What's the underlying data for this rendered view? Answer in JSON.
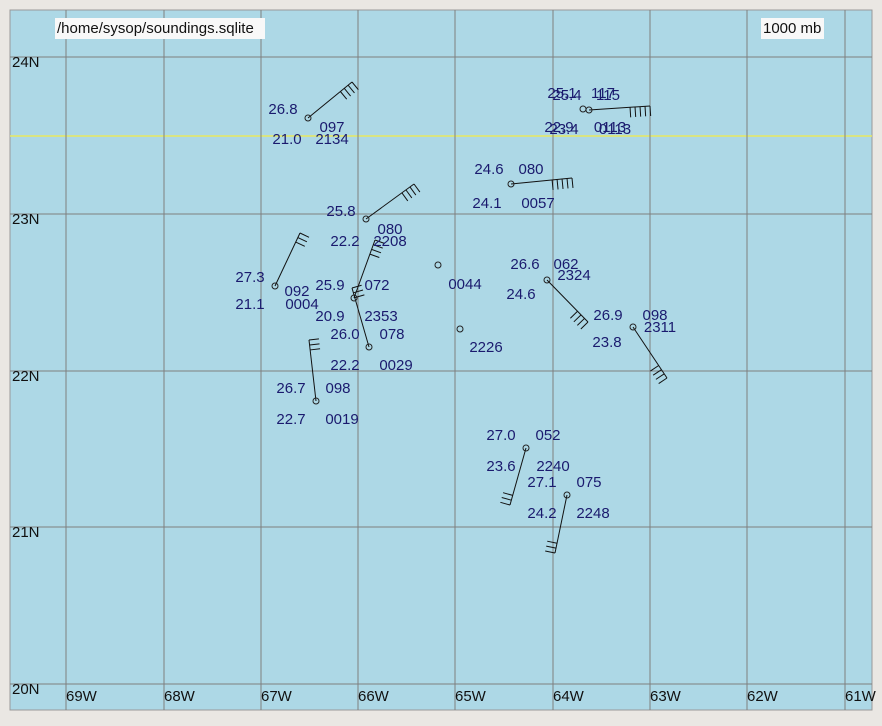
{
  "header": {
    "path": "/home/sysop/soundings.sqlite",
    "level": "1000 mb"
  },
  "lat_labels": [
    "24N",
    "23N",
    "22N",
    "21N",
    "20N"
  ],
  "lon_labels": [
    "69W",
    "68W",
    "67W",
    "66W",
    "65W",
    "64W",
    "63W",
    "62W",
    "61W"
  ],
  "stations": [
    {
      "temperature": "26.8",
      "height": "097",
      "dewpoint": "21.0",
      "time": "2134"
    },
    {
      "temperature": "25.1",
      "height": "117",
      "dewpoint": "22.9",
      "time": "0113"
    },
    {
      "temperature": "25.4",
      "height": "115",
      "dewpoint": "23.4",
      "time": "0113"
    },
    {
      "temperature": "24.6",
      "height": "080",
      "dewpoint": "24.1",
      "time": "0057"
    },
    {
      "temperature": "25.8",
      "height": "080",
      "dewpoint": "22.2",
      "time": "2208"
    },
    {
      "temperature": "27.3",
      "height": "092",
      "dewpoint": "21.1",
      "time": "0004"
    },
    {
      "temperature": "25.9",
      "height": "072",
      "dewpoint": "20.9",
      "time": "2353"
    },
    {
      "time": "0044"
    },
    {
      "time": "2226"
    },
    {
      "temperature": "26.6",
      "height": "062",
      "dewpoint": "24.6",
      "time": "2324"
    },
    {
      "temperature": "26.9",
      "height": "098",
      "dewpoint": "23.8",
      "time": "2311"
    },
    {
      "temperature": "26.0",
      "height": "078",
      "dewpoint": "22.2",
      "time": "0029"
    },
    {
      "temperature": "26.7",
      "height": "098",
      "dewpoint": "22.7",
      "time": "0019"
    },
    {
      "temperature": "27.0",
      "height": "052",
      "dewpoint": "23.6",
      "time": "2240"
    },
    {
      "temperature": "27.1",
      "height": "075",
      "dewpoint": "24.2",
      "time": "2248"
    }
  ]
}
